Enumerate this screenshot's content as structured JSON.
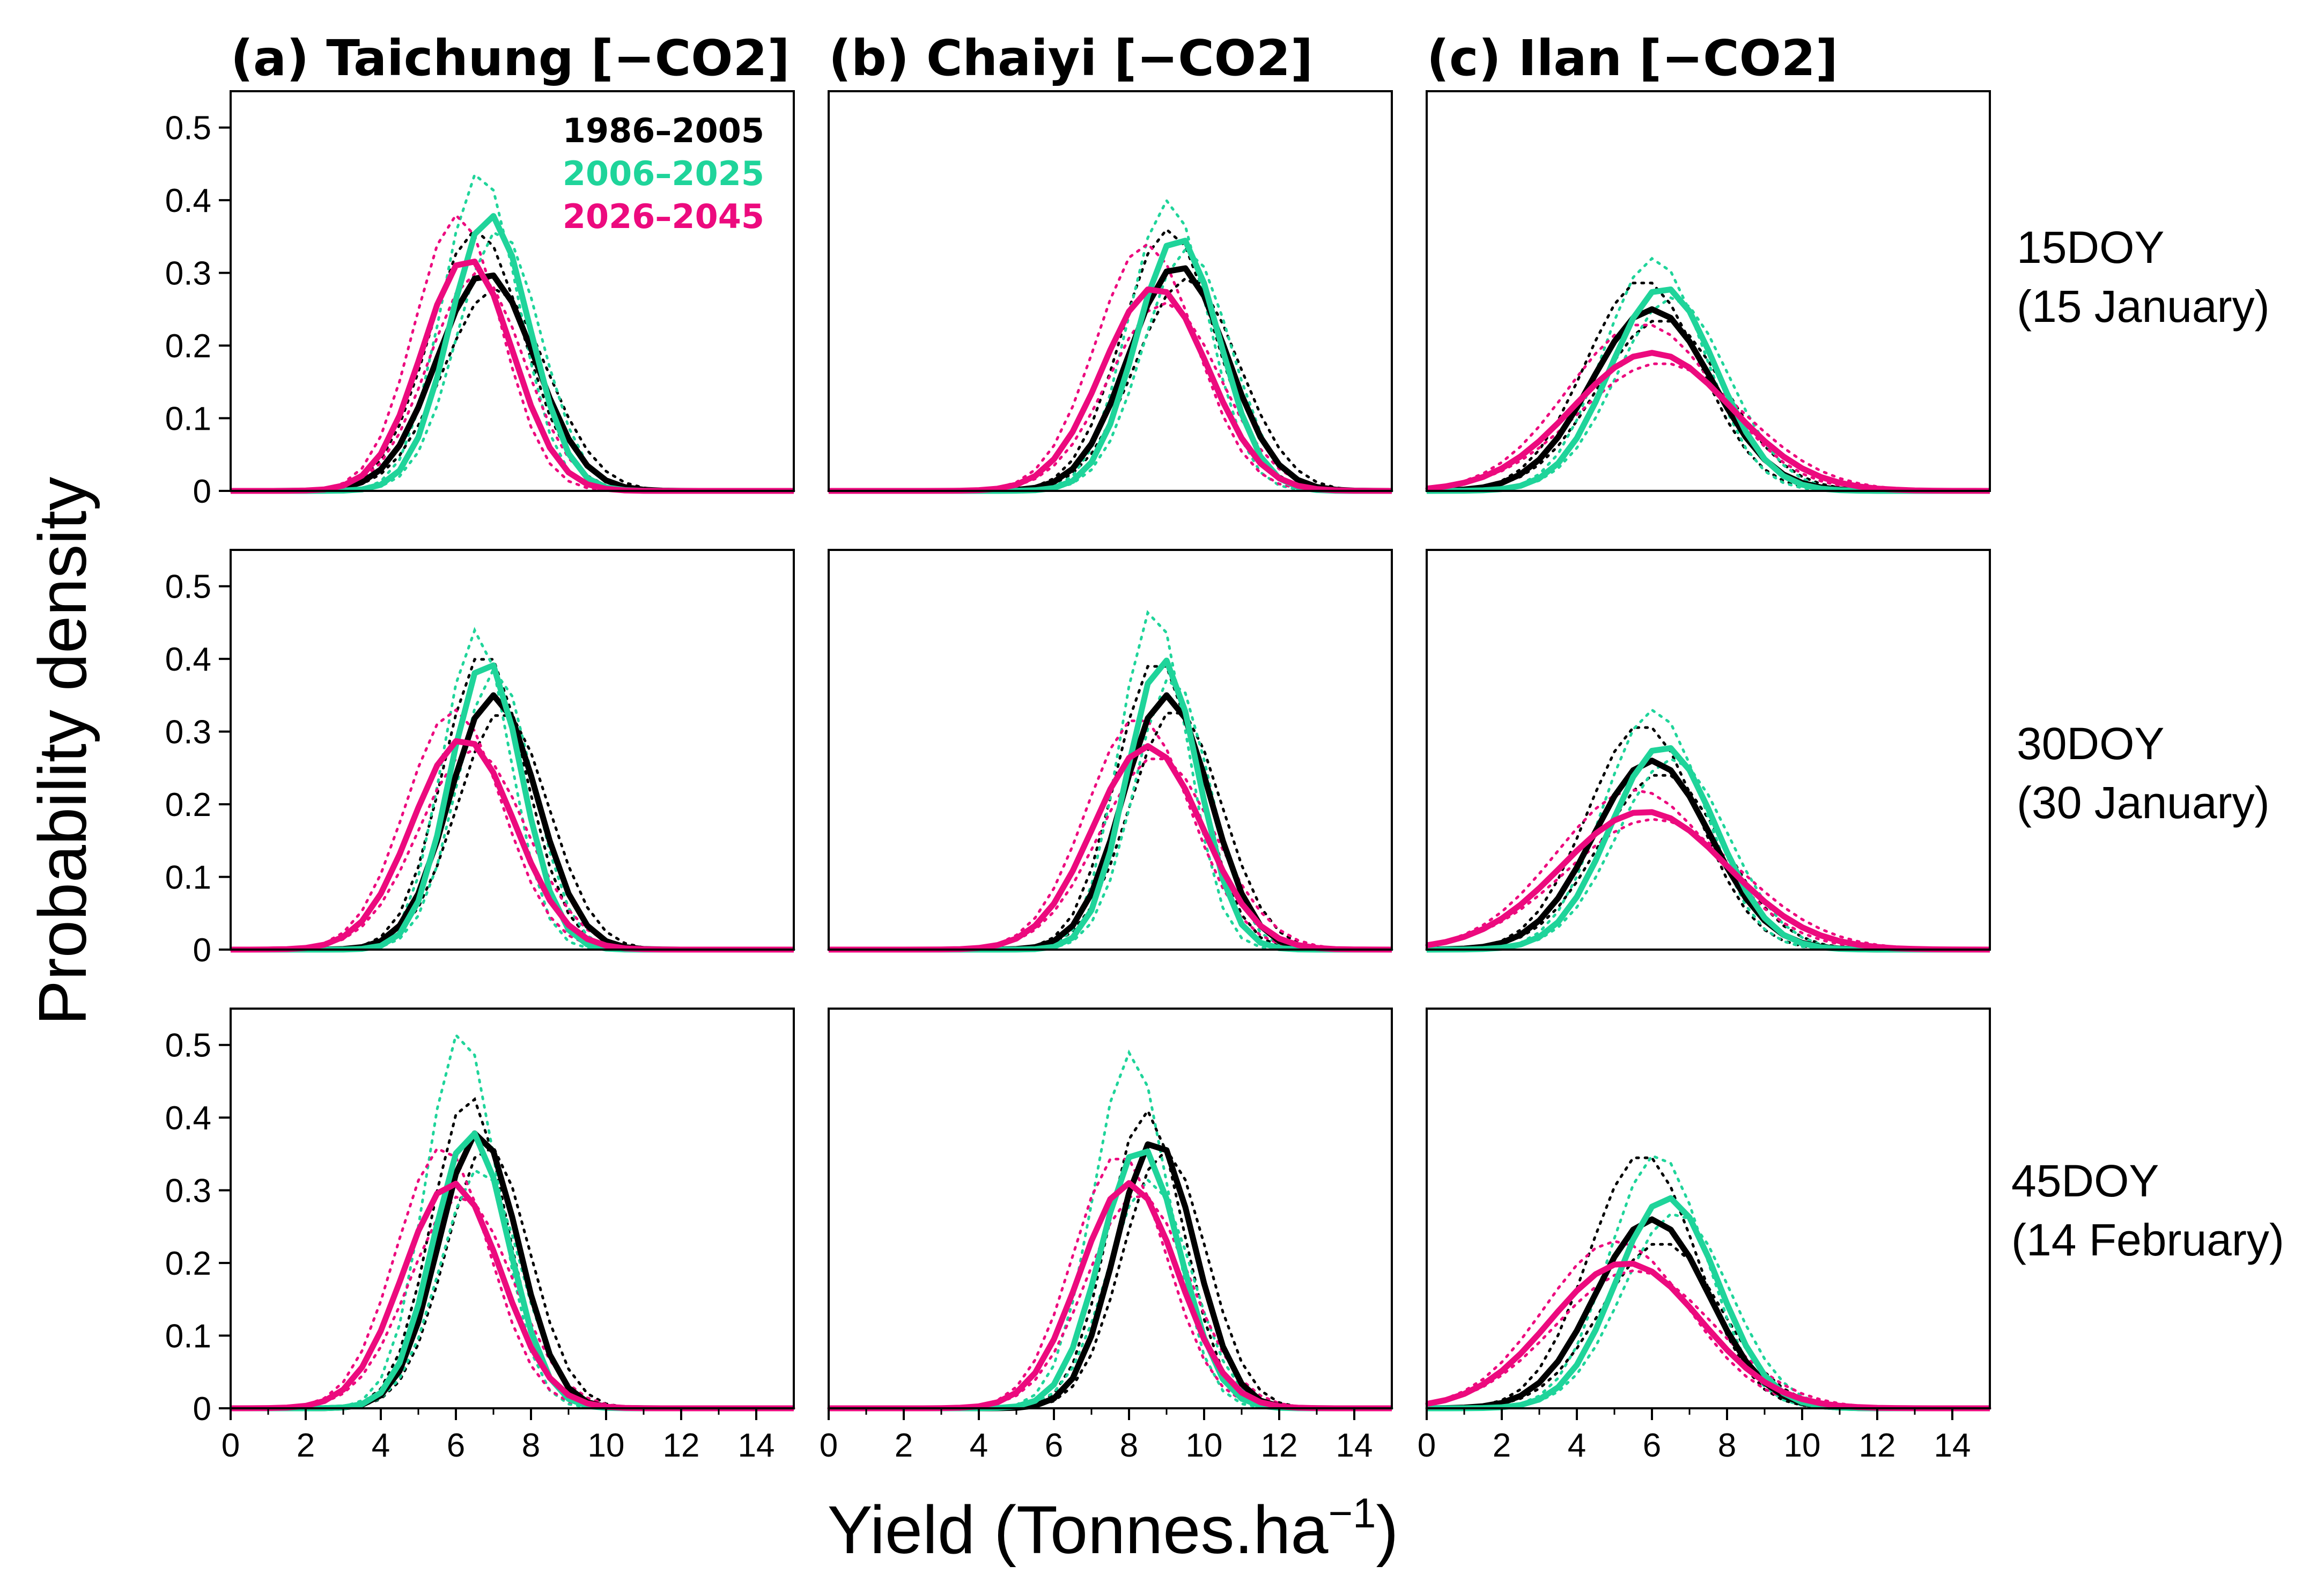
{
  "figure": {
    "ylabel": "Probability density",
    "xlabel_main": "Yield (Tonnes.ha",
    "xlabel_sup": "−1",
    "xlabel_close": ")"
  },
  "colors": {
    "1986-2005": "#000000",
    "2006-2025": "#1fd49a",
    "2026-2045": "#ec0a7e"
  },
  "legend": [
    "1986–2005",
    "2006–2025",
    "2026–2045"
  ],
  "columns": [
    {
      "title": "(a) Taichung [−CO2]"
    },
    {
      "title": "(b) Chaiyi [−CO2]"
    },
    {
      "title": "(c) Ilan [−CO2]"
    }
  ],
  "rows": [
    {
      "label_line1": "15DOY",
      "label_line2": "(15 January)"
    },
    {
      "label_line1": "30DOY",
      "label_line2": "(30 January)"
    },
    {
      "label_line1": "45DOY",
      "label_line2": "(14 February)"
    }
  ],
  "chart_data": {
    "type": "line",
    "xlim": [
      0,
      15
    ],
    "ylim": [
      0,
      0.55
    ],
    "xticks": [
      0,
      2,
      4,
      6,
      8,
      10,
      12,
      14
    ],
    "yticks": [
      0,
      0.1,
      0.2,
      0.3,
      0.4,
      0.5
    ],
    "ytick_labels": [
      "0",
      "0.1",
      "0.2",
      "0.3",
      "0.4",
      "0.5"
    ],
    "xtick_labels": [
      "0",
      "2",
      "4",
      "6",
      "8",
      "10",
      "12",
      "14"
    ],
    "x": [
      0,
      0.5,
      1,
      1.5,
      2,
      2.5,
      3,
      3.5,
      4,
      4.5,
      5,
      5.5,
      6,
      6.5,
      7,
      7.5,
      8,
      8.5,
      9,
      9.5,
      10,
      10.5,
      11,
      11.5,
      12,
      12.5,
      13,
      13.5,
      14,
      14.5,
      15
    ],
    "panels": [
      {
        "row": 0,
        "col": 0,
        "series": [
          {
            "name": "1986–2005",
            "mean": 6.8,
            "sd": 1.3,
            "peak": 0.3,
            "band": 0.06
          },
          {
            "name": "2006–2025",
            "mean": 6.9,
            "sd": 1.05,
            "peak": 0.38,
            "band": 0.06
          },
          {
            "name": "2026–2045",
            "mean": 6.3,
            "sd": 1.2,
            "peak": 0.32,
            "band": 0.06
          }
        ]
      },
      {
        "row": 0,
        "col": 1,
        "series": [
          {
            "name": "1986–2005",
            "mean": 9.3,
            "sd": 1.3,
            "peak": 0.31,
            "band": 0.05
          },
          {
            "name": "2006–2025",
            "mean": 9.3,
            "sd": 1.1,
            "peak": 0.35,
            "band": 0.05
          },
          {
            "name": "2026–2045",
            "mean": 8.7,
            "sd": 1.4,
            "peak": 0.28,
            "band": 0.06
          }
        ]
      },
      {
        "row": 0,
        "col": 2,
        "series": [
          {
            "name": "1986–2005",
            "mean": 6.0,
            "sd": 1.6,
            "peak": 0.25,
            "band": 0.04
          },
          {
            "name": "2006–2025",
            "mean": 6.3,
            "sd": 1.4,
            "peak": 0.28,
            "band": 0.04
          },
          {
            "name": "2026–2045",
            "mean": 6.0,
            "sd": 2.1,
            "peak": 0.19,
            "band": 0.04
          }
        ]
      },
      {
        "row": 1,
        "col": 0,
        "series": [
          {
            "name": "1986–2005",
            "mean": 7.0,
            "sd": 1.15,
            "peak": 0.35,
            "band": 0.06
          },
          {
            "name": "2006–2025",
            "mean": 6.8,
            "sd": 0.95,
            "peak": 0.4,
            "band": 0.04
          },
          {
            "name": "2026–2045",
            "mean": 6.2,
            "sd": 1.35,
            "peak": 0.29,
            "band": 0.04
          }
        ]
      },
      {
        "row": 1,
        "col": 1,
        "series": [
          {
            "name": "1986–2005",
            "mean": 9.0,
            "sd": 1.15,
            "peak": 0.35,
            "band": 0.05
          },
          {
            "name": "2006–2025",
            "mean": 8.9,
            "sd": 0.95,
            "peak": 0.4,
            "band": 0.07
          },
          {
            "name": "2026–2045",
            "mean": 8.5,
            "sd": 1.45,
            "peak": 0.28,
            "band": 0.04
          }
        ]
      },
      {
        "row": 1,
        "col": 2,
        "series": [
          {
            "name": "1986–2005",
            "mean": 6.0,
            "sd": 1.55,
            "peak": 0.26,
            "band": 0.05
          },
          {
            "name": "2006–2025",
            "mean": 6.3,
            "sd": 1.4,
            "peak": 0.28,
            "band": 0.05
          },
          {
            "name": "2026–2045",
            "mean": 5.8,
            "sd": 2.2,
            "peak": 0.19,
            "band": 0.03
          }
        ]
      },
      {
        "row": 2,
        "col": 0,
        "series": [
          {
            "name": "1986–2005",
            "mean": 6.6,
            "sd": 1.05,
            "peak": 0.38,
            "band": 0.05
          },
          {
            "name": "2006–2025",
            "mean": 6.4,
            "sd": 1.0,
            "peak": 0.38,
            "band": 0.14
          },
          {
            "name": "2026–2045",
            "mean": 5.9,
            "sd": 1.3,
            "peak": 0.31,
            "band": 0.05
          }
        ]
      },
      {
        "row": 2,
        "col": 1,
        "series": [
          {
            "name": "1986–2005",
            "mean": 8.7,
            "sd": 1.05,
            "peak": 0.37,
            "band": 0.04
          },
          {
            "name": "2006–2025",
            "mean": 8.3,
            "sd": 1.05,
            "peak": 0.36,
            "band": 0.13
          },
          {
            "name": "2026–2045",
            "mean": 8.0,
            "sd": 1.3,
            "peak": 0.31,
            "band": 0.04
          }
        ]
      },
      {
        "row": 2,
        "col": 2,
        "series": [
          {
            "name": "1986–2005",
            "mean": 6.0,
            "sd": 1.5,
            "peak": 0.26,
            "band": 0.09
          },
          {
            "name": "2006–2025",
            "mean": 6.4,
            "sd": 1.35,
            "peak": 0.29,
            "band": 0.06
          },
          {
            "name": "2026–2045",
            "mean": 5.3,
            "sd": 2.0,
            "peak": 0.2,
            "band": 0.03
          }
        ]
      }
    ]
  }
}
